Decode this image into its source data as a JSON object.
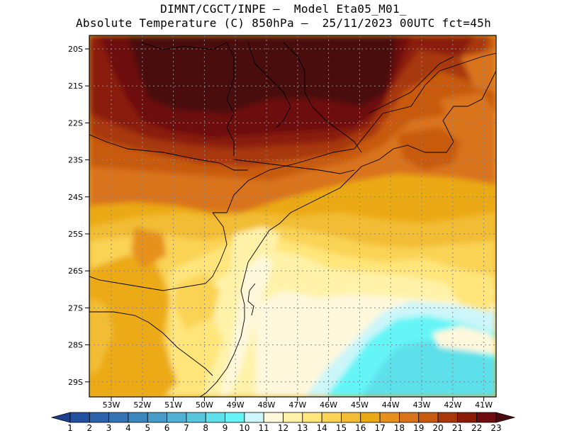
{
  "header": {
    "line1": "DIMNT/CGCT/INPE –  Model Eta05_M01_",
    "line2": "Absolute Temperature (C) 850hPa –  25/11/2023 00UTC fct=45h"
  },
  "map": {
    "lat_labels": [
      "20S",
      "21S",
      "22S",
      "23S",
      "24S",
      "25S",
      "26S",
      "27S",
      "28S",
      "29S"
    ],
    "lon_labels": [
      "53W",
      "52W",
      "51W",
      "50W",
      "49W",
      "48W",
      "47W",
      "46W",
      "45W",
      "44W",
      "43W",
      "42W",
      "41W"
    ],
    "region_labels": []
  },
  "colorbar": {
    "labels": [
      "1",
      "2",
      "3",
      "4",
      "5",
      "6",
      "7",
      "8",
      "9",
      "10",
      "11",
      "12",
      "13",
      "14",
      "15",
      "16",
      "17",
      "18",
      "19",
      "20",
      "21",
      "22",
      "23"
    ],
    "colors": [
      "#1d3f8f",
      "#23509e",
      "#2c62ab",
      "#3474b5",
      "#3d87c0",
      "#469bc9",
      "#4fb1d3",
      "#57c7de",
      "#5de0ea",
      "#66f5f7",
      "#ccf6f9",
      "#fff8dc",
      "#fff2a8",
      "#ffe57a",
      "#fad355",
      "#f2bd35",
      "#ebaa15",
      "#e6911a",
      "#d9731a",
      "#c85a10",
      "#a8380a",
      "#8a1c08",
      "#6e0c10",
      "#4a0a0e"
    ]
  }
}
